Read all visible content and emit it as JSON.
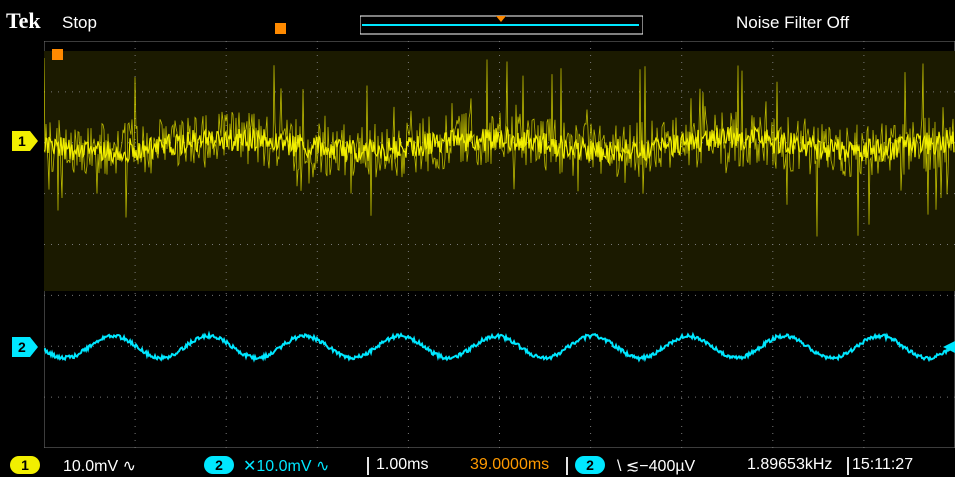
{
  "window": {
    "brand": "Tek",
    "acq_state": "Stop",
    "status": "Noise Filter Off"
  },
  "channels": {
    "ch1": {
      "label": "1",
      "scale": "10.0mV",
      "coupling_icon": "ac-coupling-icon",
      "color": "#f2ef00"
    },
    "ch2": {
      "label": "2",
      "scale": "✕10.0mV",
      "coupling_icon": "ac-coupling-icon",
      "color": "#00e7ff"
    }
  },
  "horizontal": {
    "timebase": "1.00ms",
    "position": "39.0000ms"
  },
  "trigger": {
    "source": "2",
    "slope": "falling-edge-icon",
    "level": "≲−400µV",
    "frequency": "1.89653kHz",
    "color": "#ff9a00"
  },
  "clock": {
    "time": "15:11:27"
  }
}
